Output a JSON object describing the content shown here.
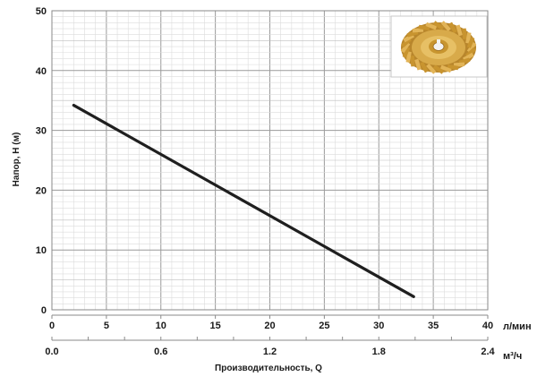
{
  "chart_data": {
    "type": "line",
    "title": "",
    "xlabel": "Производительность, Q",
    "ylabel": "Напор, H (м)",
    "x_unit_primary": "л/мин",
    "x_unit_secondary": "м³/ч",
    "xlim": [
      0,
      40
    ],
    "ylim": [
      0,
      50
    ],
    "x_ticks": [
      "0",
      "5",
      "10",
      "15",
      "20",
      "25",
      "30",
      "35",
      "40"
    ],
    "y_ticks": [
      "0",
      "10",
      "20",
      "30",
      "40",
      "50"
    ],
    "x_secondary_ticks": [
      "0.0",
      "0.6",
      "1.2",
      "1.8",
      "2.4"
    ],
    "x_secondary_lim": [
      0,
      2.4
    ],
    "grid": true,
    "series": [
      {
        "x": [
          2,
          33.2
        ],
        "y": [
          34.2,
          2.2
        ],
        "color": "#1f1f1f"
      }
    ],
    "inset_image": "brass-impeller"
  }
}
